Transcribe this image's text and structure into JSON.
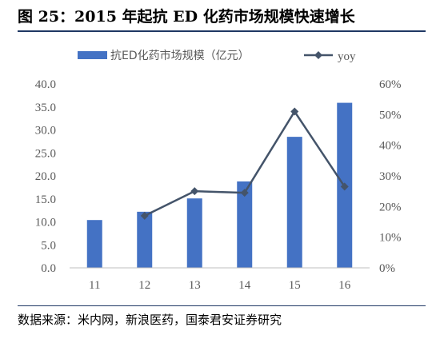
{
  "figure": {
    "title": "图 25：2015 年起抗 ED 化药市场规模快速增长",
    "source": "数据来源：米内网，新浪医药，国泰君安证券研究"
  },
  "colors": {
    "bar": "#4472c4",
    "line": "#44546a",
    "text": "#595959",
    "rule": "#1f3864"
  },
  "chart_data": {
    "type": "bar",
    "categories": [
      "11",
      "12",
      "13",
      "14",
      "15",
      "16"
    ],
    "series": [
      {
        "name": "抗ED化药市场规模（亿元）",
        "type": "bar",
        "axis": "left",
        "values": [
          10.4,
          12.2,
          15.1,
          18.8,
          28.5,
          35.9
        ]
      },
      {
        "name": "yoy",
        "type": "line",
        "axis": "right",
        "values": [
          null,
          0.17,
          0.25,
          0.245,
          0.51,
          0.265
        ]
      }
    ],
    "y_left": {
      "ylim": [
        0,
        40
      ],
      "ticks": [
        "0.0",
        "5.0",
        "10.0",
        "15.0",
        "20.0",
        "25.0",
        "30.0",
        "35.0",
        "40.0"
      ]
    },
    "y_right": {
      "ylim": [
        0,
        0.6
      ],
      "ticks": [
        "0%",
        "10%",
        "20%",
        "30%",
        "40%",
        "50%",
        "60%"
      ]
    },
    "legend": "top",
    "grid": false
  }
}
